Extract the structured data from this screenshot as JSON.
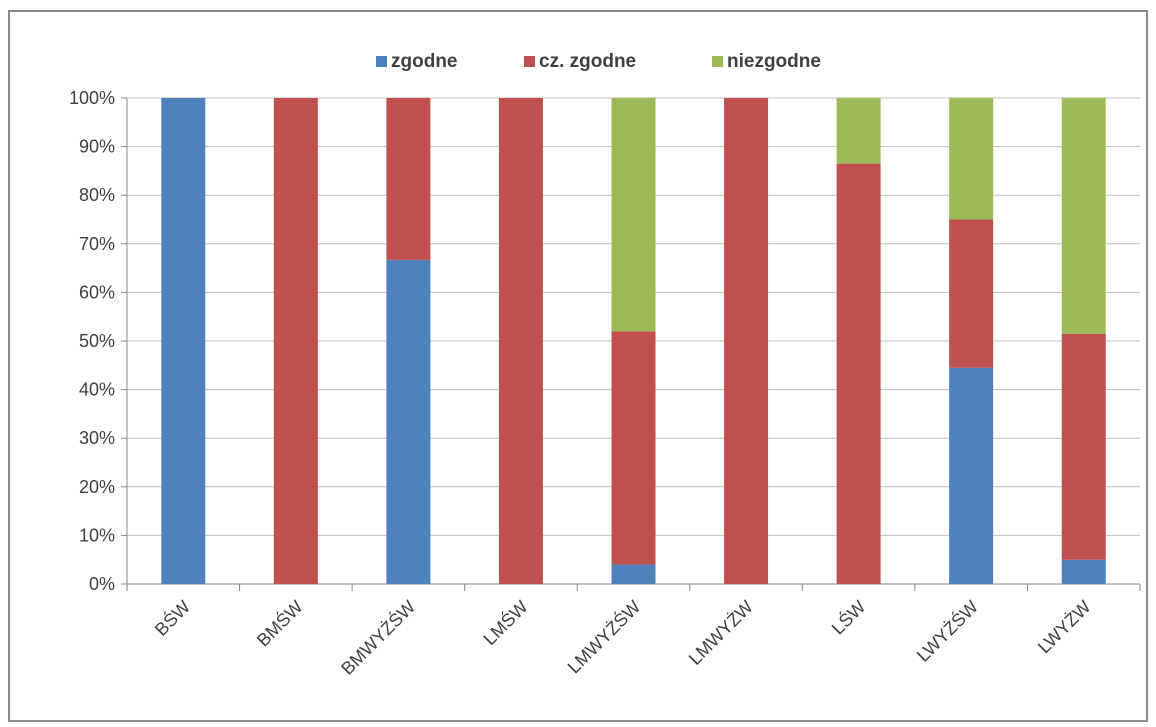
{
  "chart_data": {
    "type": "bar",
    "stacked": true,
    "percent": true,
    "categories": [
      "BŚW",
      "BMŚW",
      "BMWYŻŚW",
      "LMŚW",
      "LMWYŻŚW",
      "LMWYŻW",
      "LŚW",
      "LWYŻŚW",
      "LWYŻW"
    ],
    "series": [
      {
        "name": "zgodne",
        "color": "#4f81bd",
        "values": [
          100,
          0,
          66.7,
          0,
          4,
          0,
          0,
          44.5,
          5
        ]
      },
      {
        "name": "cz. zgodne",
        "color": "#c0504d",
        "values": [
          0,
          100,
          33.3,
          100,
          48,
          100,
          86.5,
          30.5,
          46.5
        ]
      },
      {
        "name": "niezgodne",
        "color": "#9bbb59",
        "values": [
          0,
          0,
          0,
          0,
          48,
          0,
          13.5,
          25,
          48.5
        ]
      }
    ],
    "yticks": [
      "0%",
      "10%",
      "20%",
      "30%",
      "40%",
      "50%",
      "60%",
      "70%",
      "80%",
      "90%",
      "100%"
    ],
    "ylim": [
      0,
      100
    ],
    "grid": true,
    "legend": "top-center",
    "title": "",
    "xlabel": "",
    "ylabel": ""
  }
}
